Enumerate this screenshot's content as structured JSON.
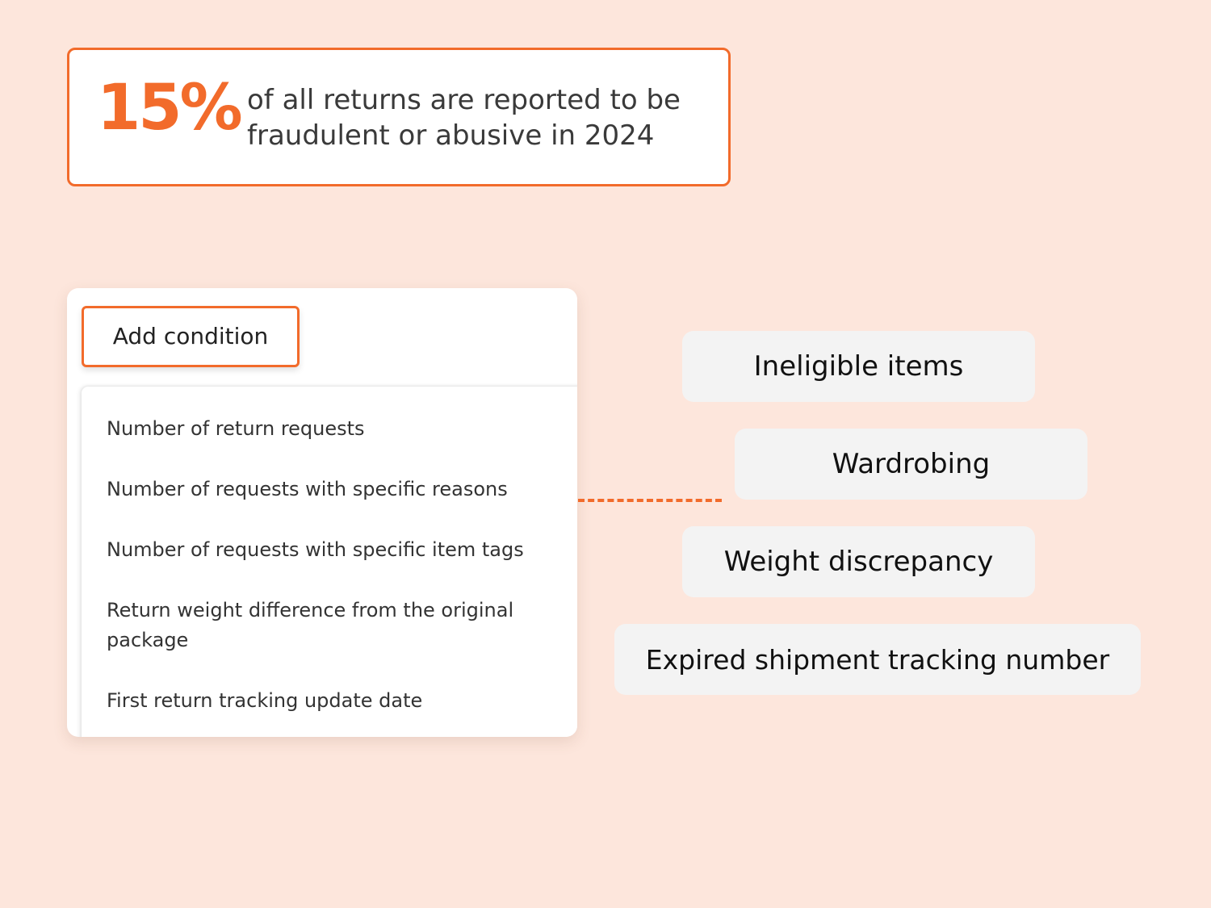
{
  "stat": {
    "value": "15%",
    "text": "of all returns are reported to be fraudulent or abusive in 2024"
  },
  "panel": {
    "add_condition_label": "Add condition",
    "menu_items": [
      "Number of return requests",
      "Number of requests with specific reasons",
      "Number of requests with specific item tags",
      "Return weight difference from the original package",
      "First return tracking update date"
    ]
  },
  "tags": [
    "Ineligible items",
    "Wardrobing",
    "Weight discrepancy",
    "Expired shipment tracking number"
  ],
  "colors": {
    "accent": "#f26b2b",
    "background": "#fde6dc",
    "tag_background": "#f3f3f3"
  }
}
